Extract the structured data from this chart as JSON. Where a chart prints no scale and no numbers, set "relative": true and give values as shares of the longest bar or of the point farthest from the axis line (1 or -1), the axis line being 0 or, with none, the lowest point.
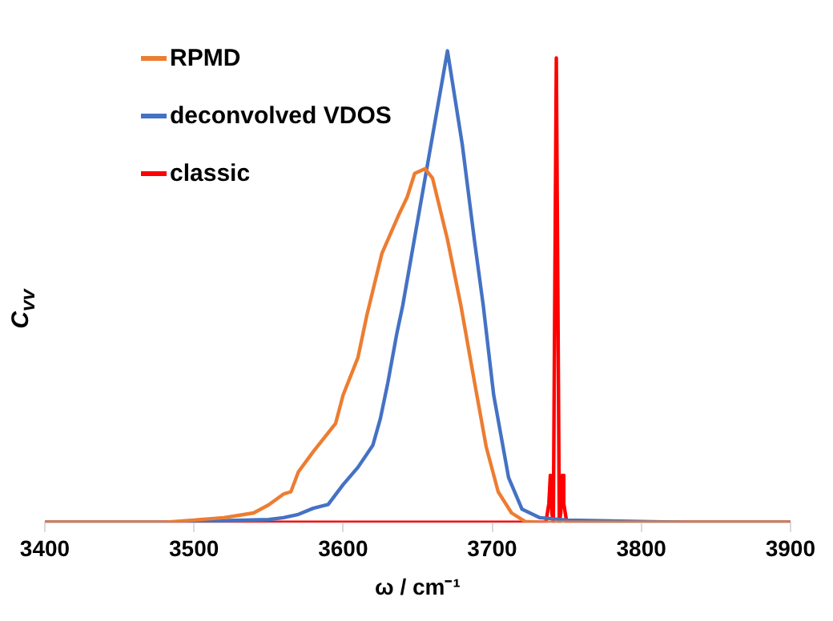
{
  "chart_data": {
    "type": "line",
    "xlabel": "ω / cm⁻¹",
    "ylabel": "C$_{vv}$",
    "relative": true,
    "xlim": [
      3400,
      3900
    ],
    "xticks": [
      3400,
      3500,
      3600,
      3700,
      3800,
      3900
    ],
    "grid": false,
    "legend": "top left",
    "marker": "none",
    "line_style": "solid",
    "series": [
      {
        "name": "RPMD",
        "color": "#ed7d31",
        "x": [
          3400,
          3480,
          3500,
          3520,
          3530,
          3540,
          3550,
          3560,
          3565,
          3570,
          3580,
          3590,
          3595,
          3600,
          3610,
          3616,
          3626,
          3637,
          3643,
          3648,
          3655,
          3660,
          3670,
          3679,
          3688,
          3696,
          3704,
          3713,
          3722,
          3730,
          3900
        ],
        "values": [
          0,
          0,
          0.005,
          0.01,
          0.015,
          0.02,
          0.037,
          0.06,
          0.065,
          0.107,
          0.15,
          0.19,
          0.21,
          0.27,
          0.35,
          0.44,
          0.57,
          0.65,
          0.69,
          0.74,
          0.75,
          0.73,
          0.6,
          0.46,
          0.3,
          0.16,
          0.065,
          0.02,
          0.002,
          0,
          0
        ]
      },
      {
        "name": "deconvolved VDOS",
        "color": "#4472c4",
        "x": [
          3400,
          3480,
          3500,
          3550,
          3560,
          3570,
          3580,
          3590,
          3600,
          3610,
          3620,
          3625,
          3630,
          3636,
          3640,
          3650,
          3660,
          3670,
          3680,
          3688,
          3694,
          3701,
          3711,
          3720,
          3732,
          3750,
          3800,
          3830,
          3900
        ],
        "values": [
          0,
          0,
          0.002,
          0.006,
          0.01,
          0.017,
          0.03,
          0.038,
          0.08,
          0.117,
          0.164,
          0.22,
          0.296,
          0.4,
          0.46,
          0.64,
          0.82,
          1,
          0.8,
          0.6,
          0.46,
          0.27,
          0.095,
          0.028,
          0.01,
          0.005,
          0.002,
          0,
          0
        ]
      },
      {
        "name": "classic",
        "color": "#ff0000",
        "x": [
          3400,
          3736,
          3738,
          3739,
          3740,
          3741,
          3742,
          3743,
          3744,
          3745,
          3746,
          3747,
          3748,
          3750,
          3900
        ],
        "values": [
          0,
          0,
          0.04,
          0.1,
          0.02,
          0,
          0.5,
          0.985,
          0.5,
          0,
          0.02,
          0.1,
          0.04,
          0,
          0
        ]
      }
    ]
  }
}
